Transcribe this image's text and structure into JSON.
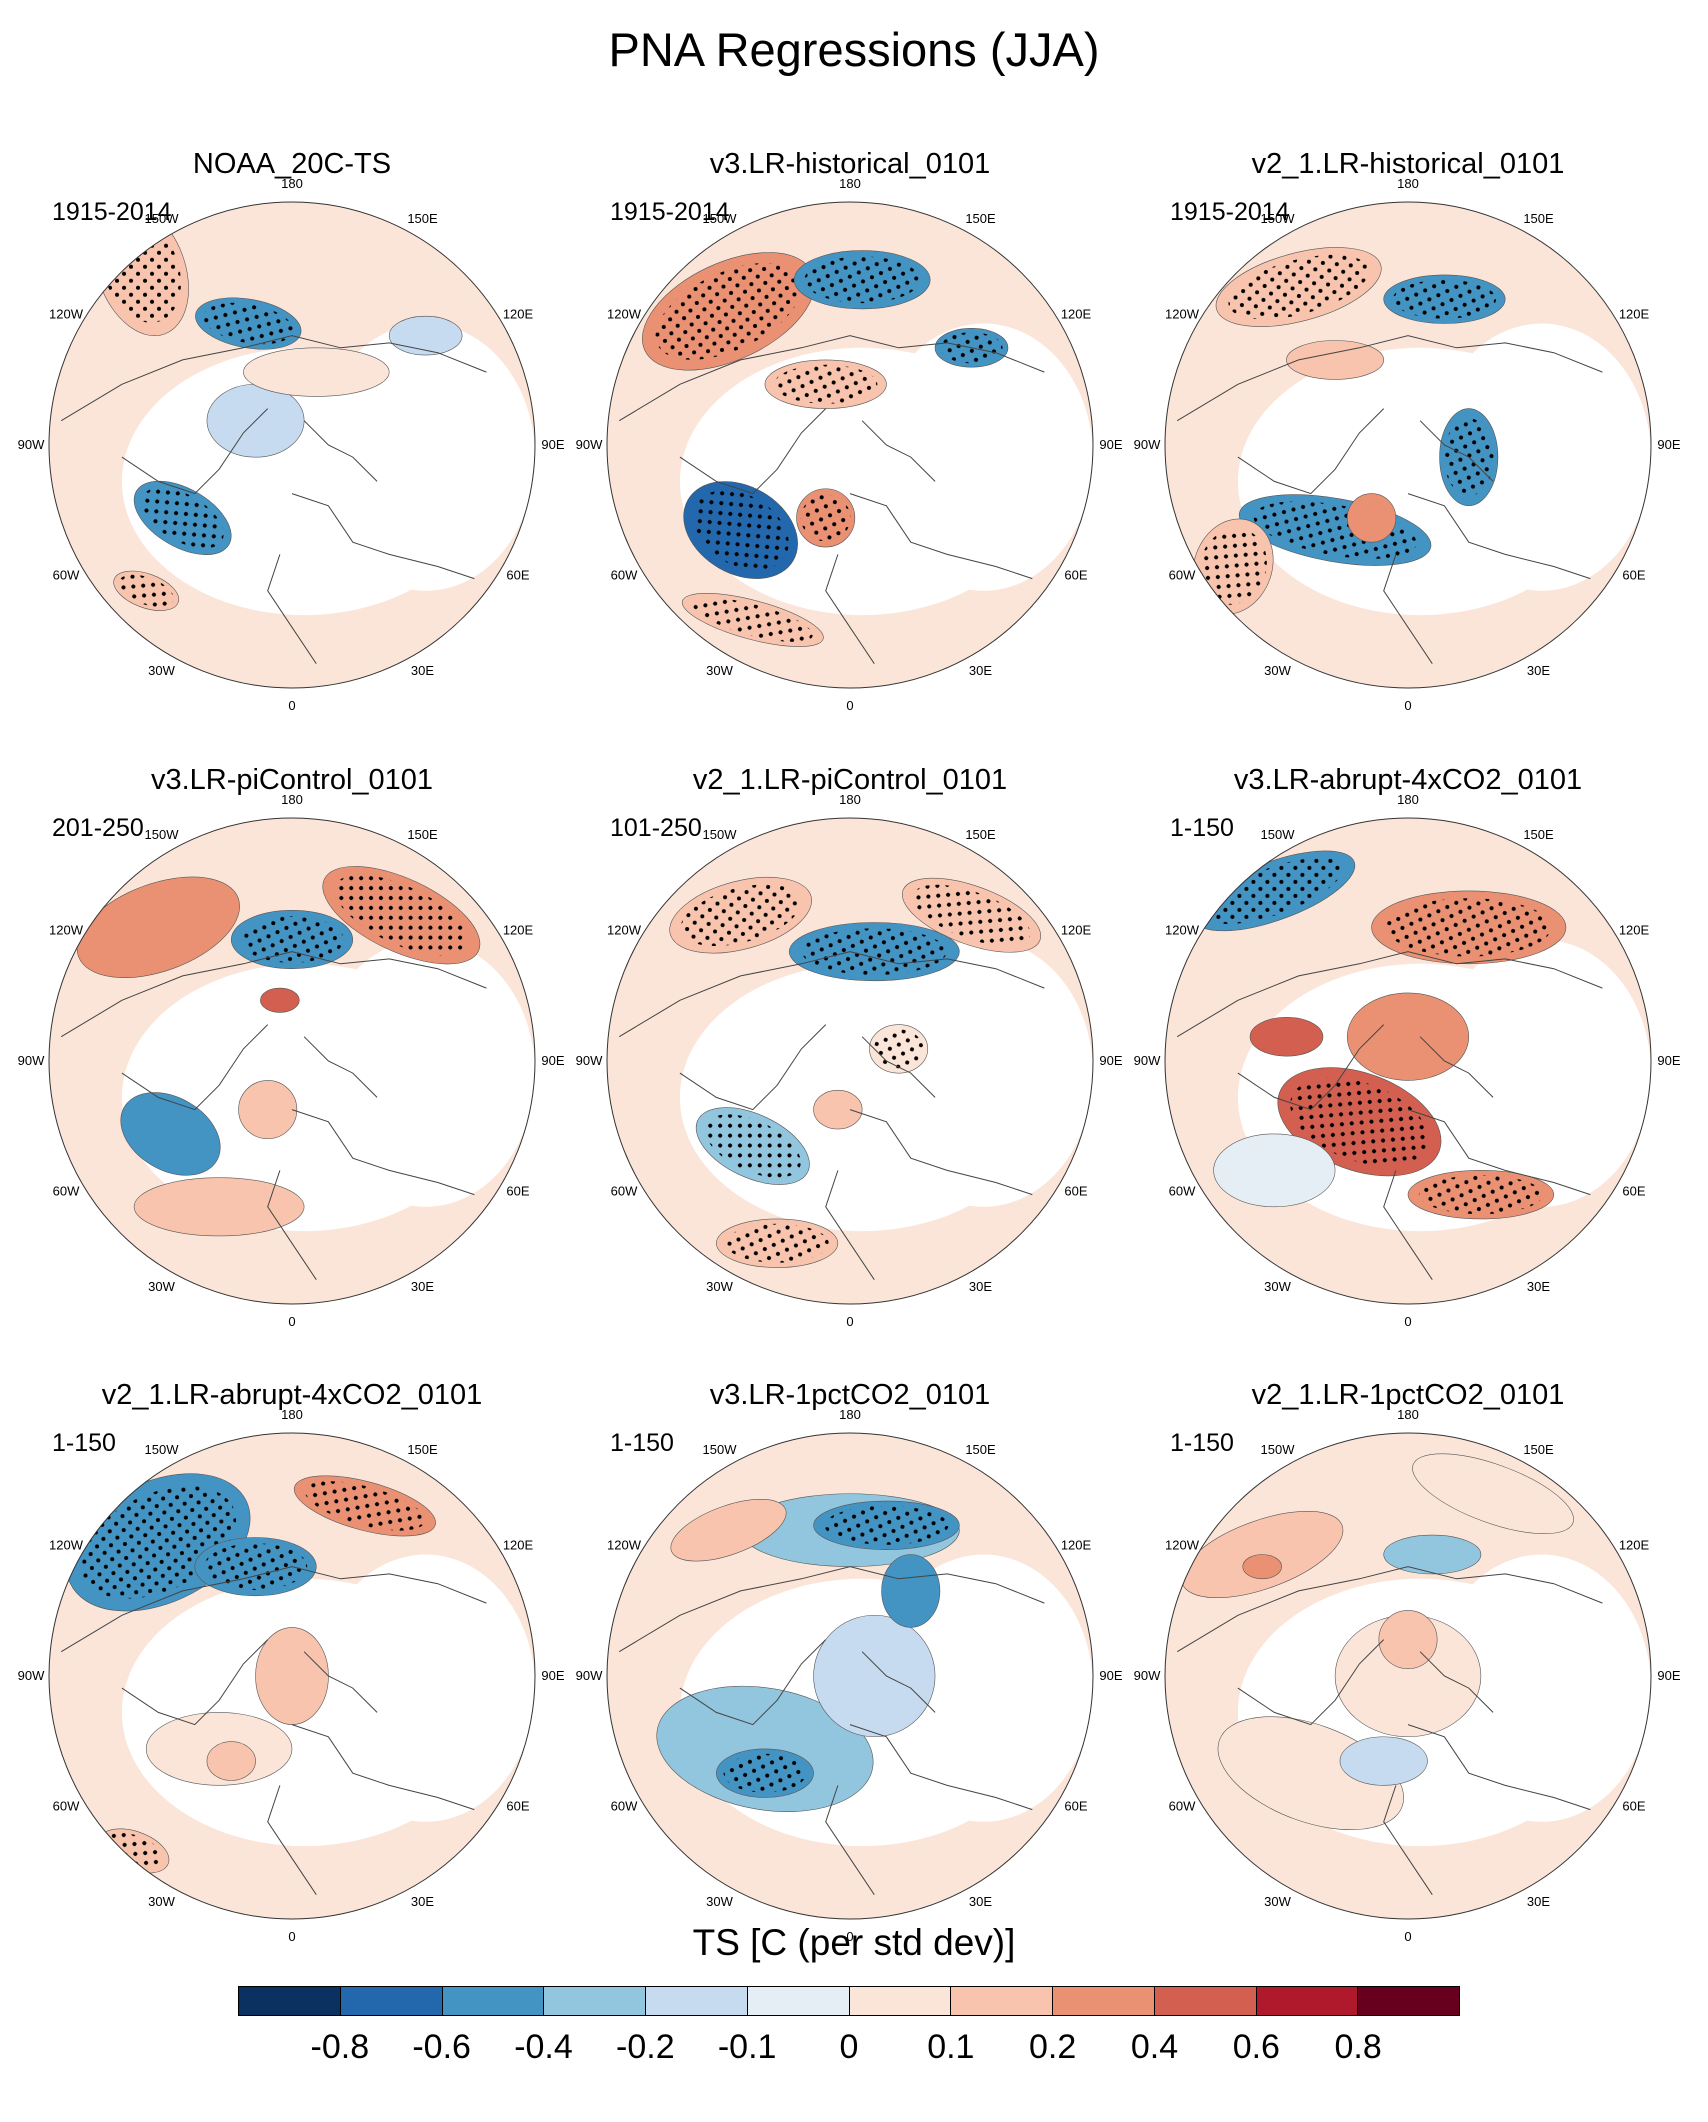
{
  "title": "PNA Regressions (JJA)",
  "panels": [
    {
      "title": "NOAA_20C-TS",
      "period": "1915-2014"
    },
    {
      "title": "v3.LR-historical_0101",
      "period": "1915-2014"
    },
    {
      "title": "v2_1.LR-historical_0101",
      "period": "1915-2014"
    },
    {
      "title": "v3.LR-piControl_0101",
      "period": "201-250"
    },
    {
      "title": "v2_1.LR-piControl_0101",
      "period": "101-250"
    },
    {
      "title": "v3.LR-abrupt-4xCO2_0101",
      "period": "1-150"
    },
    {
      "title": "v2_1.LR-abrupt-4xCO2_0101",
      "period": "1-150"
    },
    {
      "title": "v3.LR-1pctCO2_0101",
      "period": "1-150"
    },
    {
      "title": "v2_1.LR-1pctCO2_0101",
      "period": "1-150"
    }
  ],
  "longitude_labels": [
    "180",
    "150E",
    "120E",
    "90E",
    "60E",
    "30E",
    "0",
    "30W",
    "60W",
    "90W",
    "120W",
    "150W"
  ],
  "colorbar": {
    "title": "TS [C (per std dev)]",
    "labels": [
      "-0.8",
      "-0.6",
      "-0.4",
      "-0.2",
      "-0.1",
      "0",
      "0.1",
      "0.2",
      "0.4",
      "0.6",
      "0.8"
    ],
    "colors": [
      "#0b3161",
      "#2367ac",
      "#4393c3",
      "#92c5de",
      "#c6dbef",
      "#e6eef5",
      "#fbe5d9",
      "#f8c4ad",
      "#ea9173",
      "#d25f4f",
      "#b0182b",
      "#67001f"
    ]
  }
}
